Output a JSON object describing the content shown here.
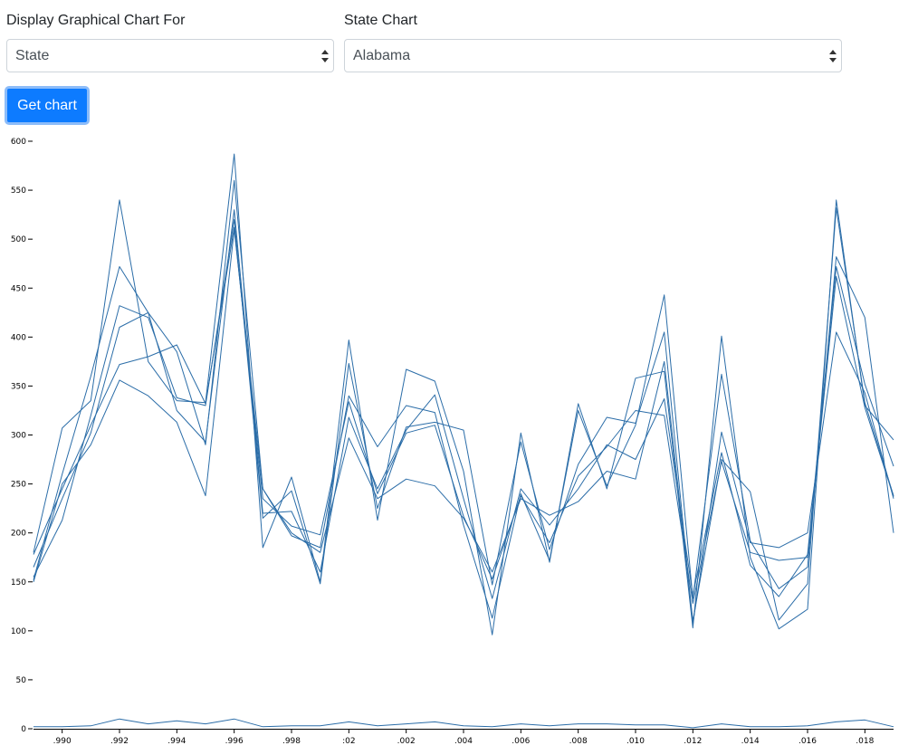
{
  "form": {
    "left_label": "Display Graphical Chart For",
    "left_value": "State",
    "right_label": "State Chart",
    "right_value": "Alabama",
    "button_label": "Get chart"
  },
  "colors": {
    "line": "#2b6da8",
    "button": "#0d7bff"
  },
  "chart_data": {
    "type": "line",
    "title": "",
    "xlabel": "",
    "ylabel": "",
    "ylim": [
      0,
      600
    ],
    "yticks": [
      0,
      50,
      100,
      150,
      200,
      250,
      300,
      350,
      400,
      450,
      500,
      550,
      600
    ],
    "ytick_labels": [
      "0",
      "50",
      "100",
      "150",
      "200",
      "250",
      "300",
      "350",
      "400",
      "450",
      "500",
      "550",
      "600"
    ],
    "x": [
      1989,
      1990,
      1991,
      1992,
      1993,
      1994,
      1995,
      1996,
      1997,
      1998,
      1999,
      2000,
      2001,
      2002,
      2003,
      2004,
      2005,
      2006,
      2007,
      2008,
      2009,
      2010,
      2011,
      2012,
      2013,
      2014,
      2015,
      2016,
      2017,
      2018,
      2019
    ],
    "xticks": [
      1990,
      1992,
      1994,
      1996,
      1998,
      2000,
      2002,
      2004,
      2006,
      2008,
      2010,
      2012,
      2014,
      2016,
      2018
    ],
    "xtick_labels": [
      ".990",
      ".992",
      ".994",
      ".996",
      ".998",
      ":02",
      ".002",
      ".004",
      ".006",
      ".008",
      ".010",
      ".012",
      ".014",
      ".016",
      ".018"
    ],
    "series": [
      {
        "values": [
          180,
          307,
          335,
          540,
          375,
          335,
          333,
          587,
          185,
          257,
          150,
          397,
          213,
          367,
          355,
          263,
          96,
          302,
          170,
          332,
          245,
          358,
          365,
          103,
          401,
          175,
          102,
          122,
          540,
          330,
          295
        ]
      },
      {
        "values": [
          152,
          260,
          360,
          472,
          425,
          385,
          290,
          560,
          245,
          197,
          185,
          340,
          288,
          330,
          323,
          208,
          113,
          240,
          172,
          325,
          248,
          310,
          443,
          133,
          362,
          192,
          143,
          165,
          482,
          420,
          200
        ]
      },
      {
        "values": [
          155,
          213,
          320,
          432,
          420,
          338,
          330,
          520,
          215,
          243,
          148,
          373,
          225,
          308,
          313,
          305,
          147,
          293,
          183,
          270,
          318,
          312,
          405,
          107,
          303,
          190,
          185,
          200,
          405,
          343,
          235
        ]
      },
      {
        "values": [
          165,
          235,
          302,
          410,
          425,
          325,
          293,
          530,
          220,
          222,
          160,
          318,
          245,
          305,
          341,
          235,
          133,
          245,
          208,
          245,
          290,
          275,
          337,
          136,
          282,
          167,
          135,
          178,
          472,
          352,
          268
        ]
      },
      {
        "values": [
          150,
          250,
          290,
          356,
          340,
          313,
          238,
          510,
          245,
          200,
          180,
          297,
          235,
          255,
          248,
          215,
          160,
          235,
          218,
          232,
          263,
          255,
          375,
          110,
          275,
          242,
          111,
          148,
          532,
          333,
          238
        ]
      },
      {
        "values": [
          178,
          245,
          310,
          372,
          380,
          392,
          332,
          512,
          235,
          207,
          198,
          334,
          240,
          302,
          310,
          217,
          153,
          238,
          190,
          258,
          288,
          325,
          320,
          128,
          273,
          180,
          172,
          175,
          462,
          328,
          237
        ]
      },
      {
        "values": [
          2,
          2,
          3,
          10,
          5,
          8,
          5,
          10,
          2,
          3,
          3,
          7,
          3,
          5,
          7,
          3,
          2,
          5,
          3,
          5,
          5,
          4,
          4,
          1,
          5,
          2,
          2,
          3,
          7,
          9,
          2
        ]
      }
    ]
  }
}
